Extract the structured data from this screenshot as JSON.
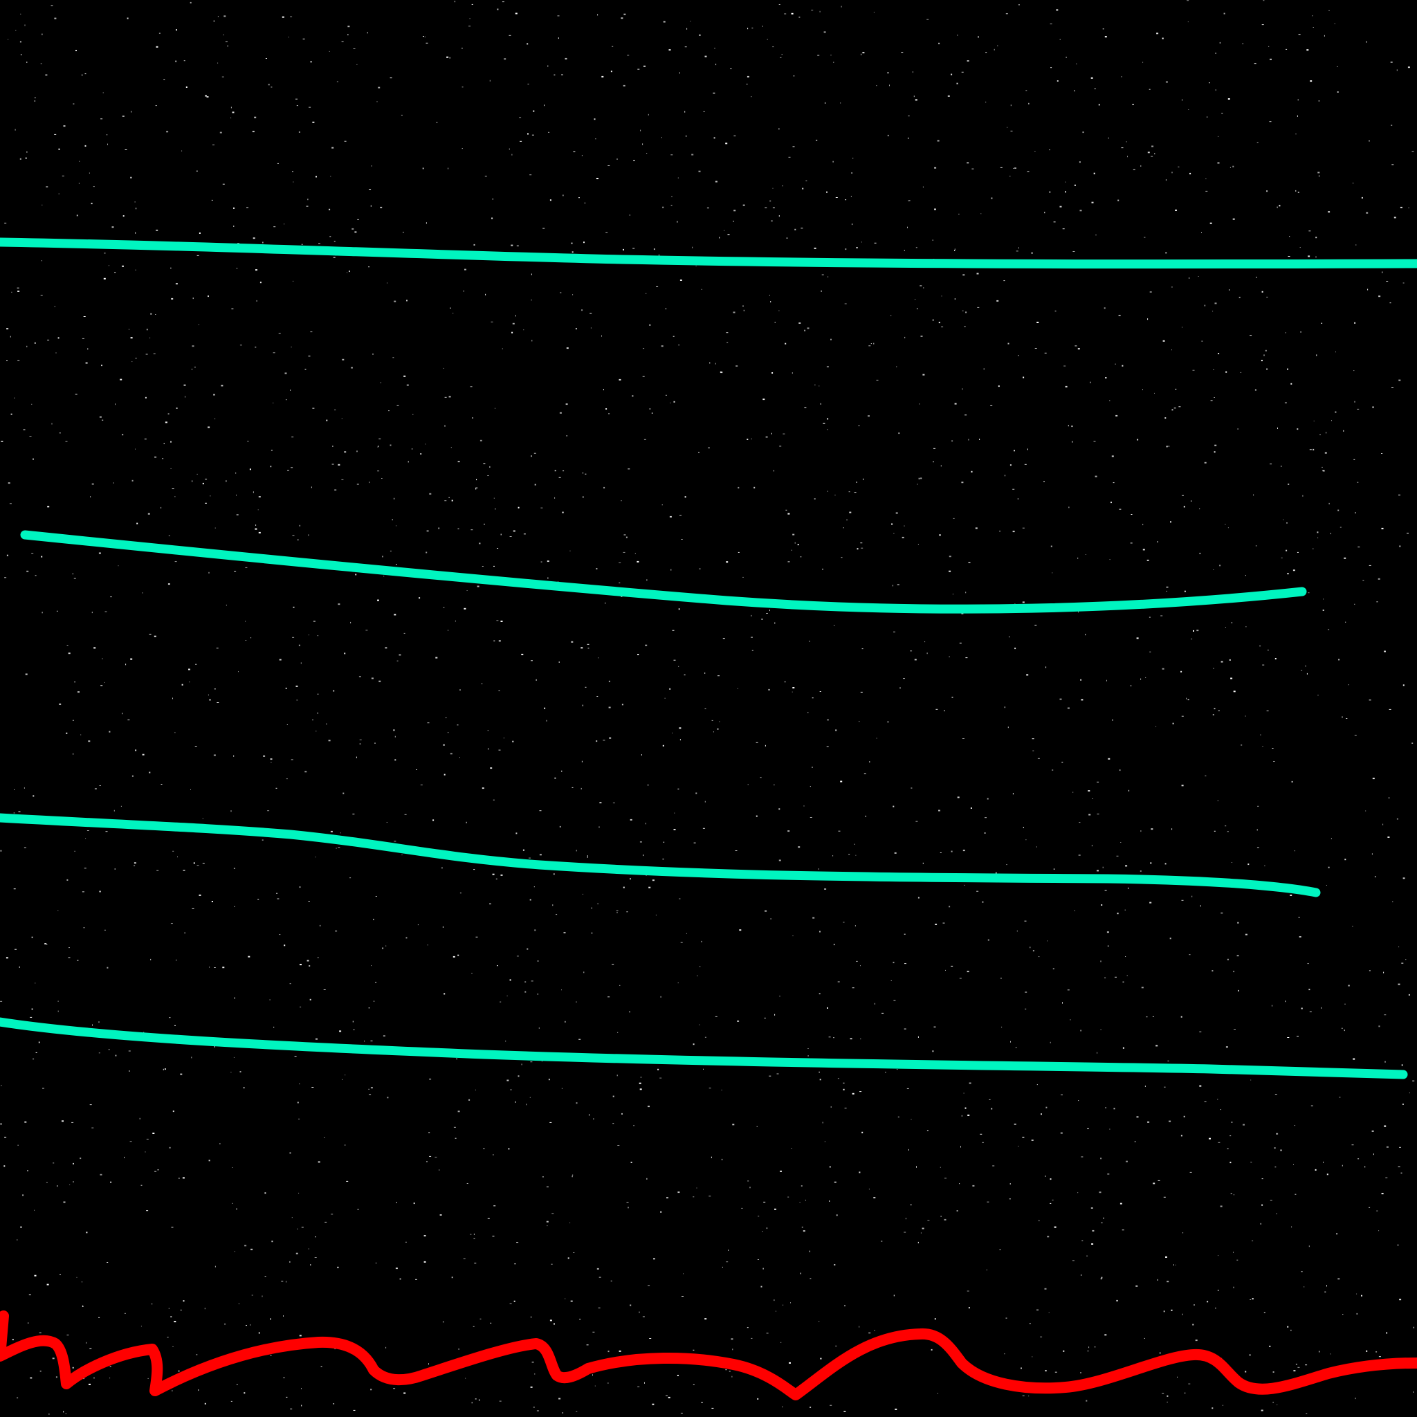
{
  "scene": {
    "background_color": "#000000",
    "star_color": "#ffffff",
    "lane_color": "#00f5c0",
    "terrain_color": "#ff0000"
  }
}
